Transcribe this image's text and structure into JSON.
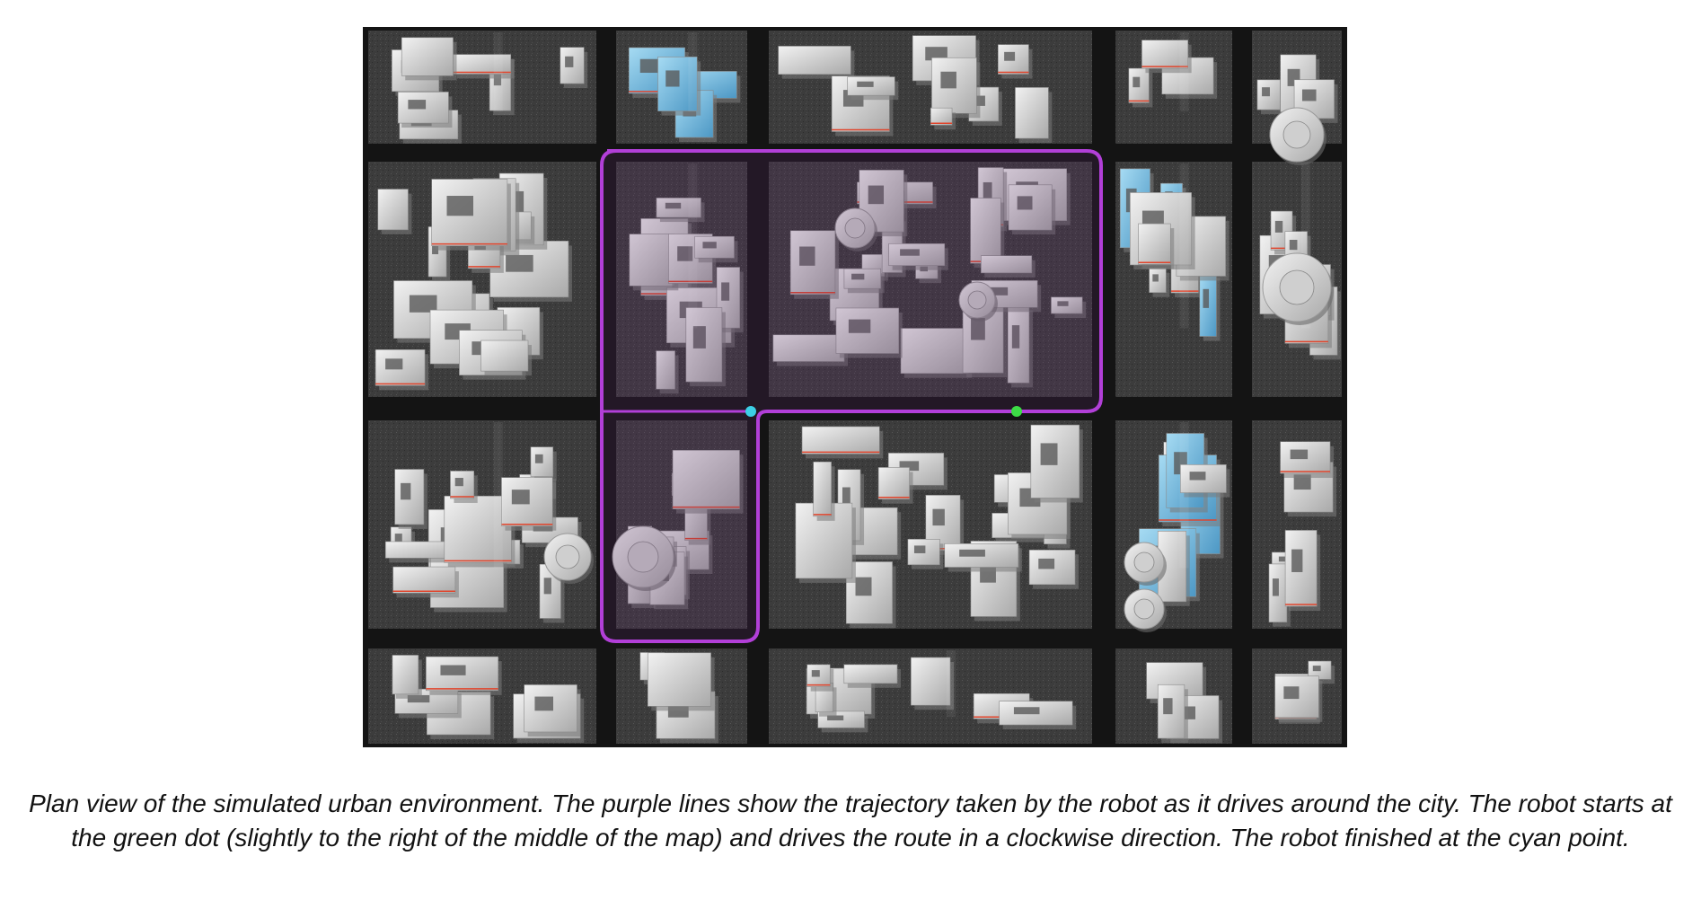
{
  "figure": {
    "caption": "Plan view of the simulated urban environment. The purple lines show the trajectory taken by the robot as it drives around the city. The robot starts at the green dot (slightly to the right of the middle of the map) and drives the route in a clockwise direction.  The robot finished at the cyan point."
  },
  "map": {
    "colors": {
      "road": "#141414",
      "block": "#4a4a4a",
      "building": "#dcdcdc",
      "building_shadow": "#7a7a7a",
      "glass": "#7ec3e6",
      "trajectory": "#b23fd8",
      "trajectory_fill": "#3a1c44",
      "start_marker": "#3ddc46",
      "end_marker": "#3ccfe6",
      "accent_red": "#e0452c"
    },
    "markers": {
      "start": {
        "label": "green dot",
        "color": "#3ddc46"
      },
      "end": {
        "label": "cyan point",
        "color": "#3ccfe6"
      }
    }
  }
}
